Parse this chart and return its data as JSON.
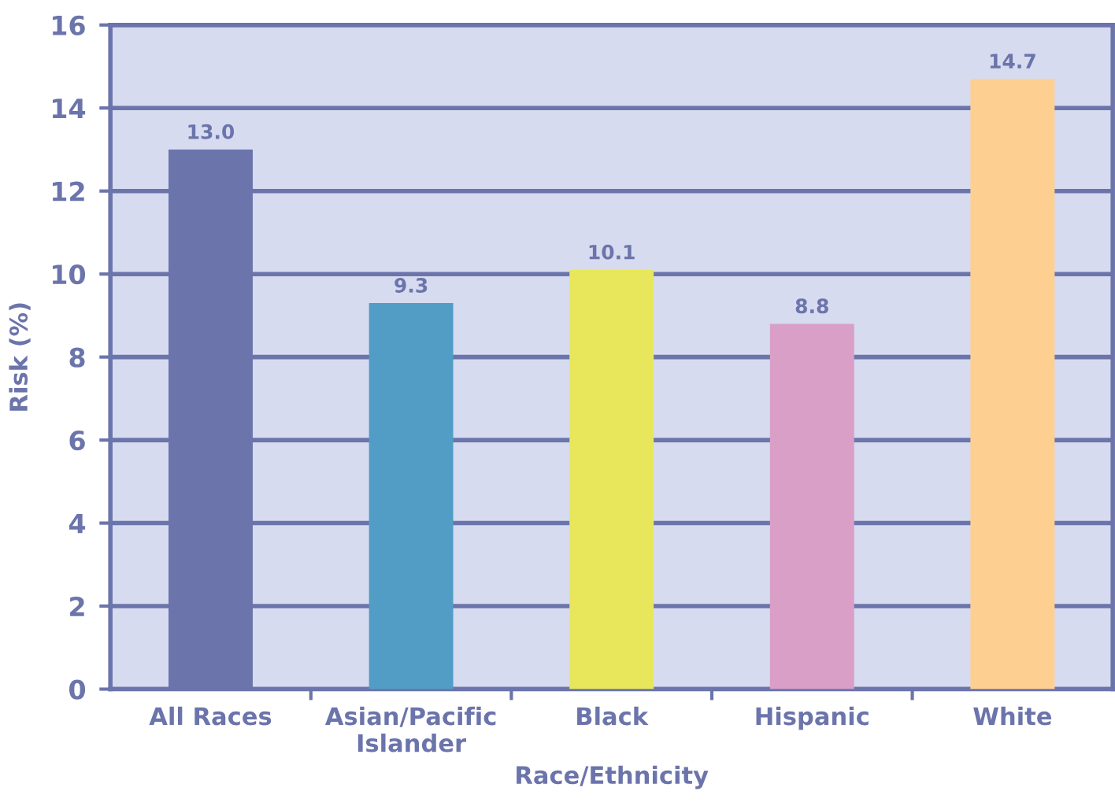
{
  "chart_data": {
    "type": "bar",
    "xlabel": "Race/Ethnicity",
    "ylabel": "Risk (%)",
    "categories": [
      "All Races",
      "Asian/Pacific\nIslander",
      "Black",
      "Hispanic",
      "White"
    ],
    "values": [
      13.0,
      9.3,
      10.1,
      8.8,
      14.7
    ],
    "colors": [
      "#6b74ab",
      "#529dc5",
      "#e8e65a",
      "#d99fc7",
      "#fdd092"
    ],
    "value_labels": [
      "13.0",
      "9.3",
      "10.1",
      "8.8",
      "14.7"
    ],
    "ylim": [
      0,
      16
    ],
    "yticks": [
      0,
      2,
      4,
      6,
      8,
      10,
      12,
      14,
      16
    ],
    "grid": "y",
    "legend": false
  }
}
